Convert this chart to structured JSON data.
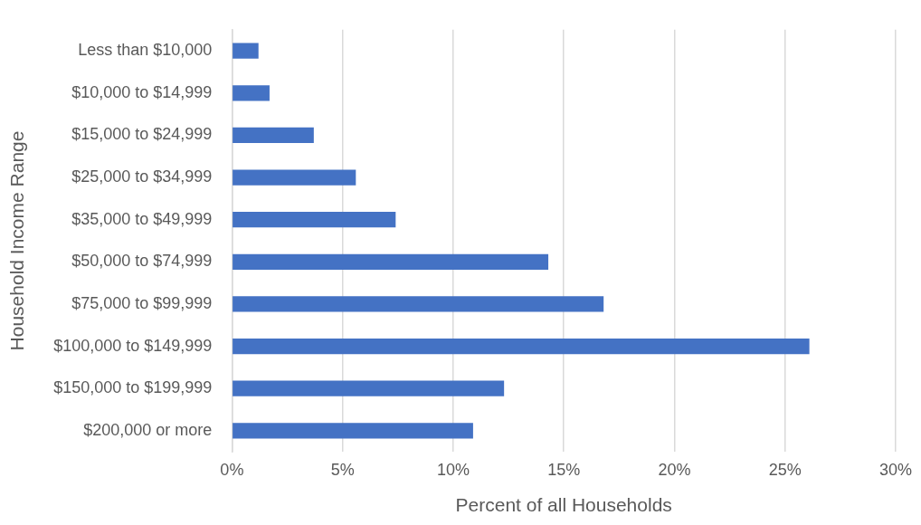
{
  "chart_data": {
    "type": "bar",
    "orientation": "horizontal",
    "xlabel": "Percent of all Households",
    "ylabel": "Household Income Range",
    "categories": [
      "Less than $10,000",
      "$10,000 to $14,999",
      "$15,000 to $24,999",
      "$25,000 to $34,999",
      "$35,000 to $49,999",
      "$50,000 to $74,999",
      "$75,000 to $99,999",
      "$100,000 to $149,999",
      "$150,000 to $199,999",
      "$200,000 or more"
    ],
    "values": [
      1.2,
      1.7,
      3.7,
      5.6,
      7.4,
      14.3,
      16.8,
      26.1,
      12.3,
      10.9
    ],
    "color": "#4472c4",
    "xlim": [
      0,
      30
    ],
    "xticks": [
      {
        "value": 0,
        "label": "0%"
      },
      {
        "value": 5,
        "label": "5%"
      },
      {
        "value": 10,
        "label": "10%"
      },
      {
        "value": 15,
        "label": "15%"
      },
      {
        "value": 20,
        "label": "20%"
      },
      {
        "value": 25,
        "label": "25%"
      },
      {
        "value": 30,
        "label": "30%"
      }
    ],
    "grid": "x"
  }
}
